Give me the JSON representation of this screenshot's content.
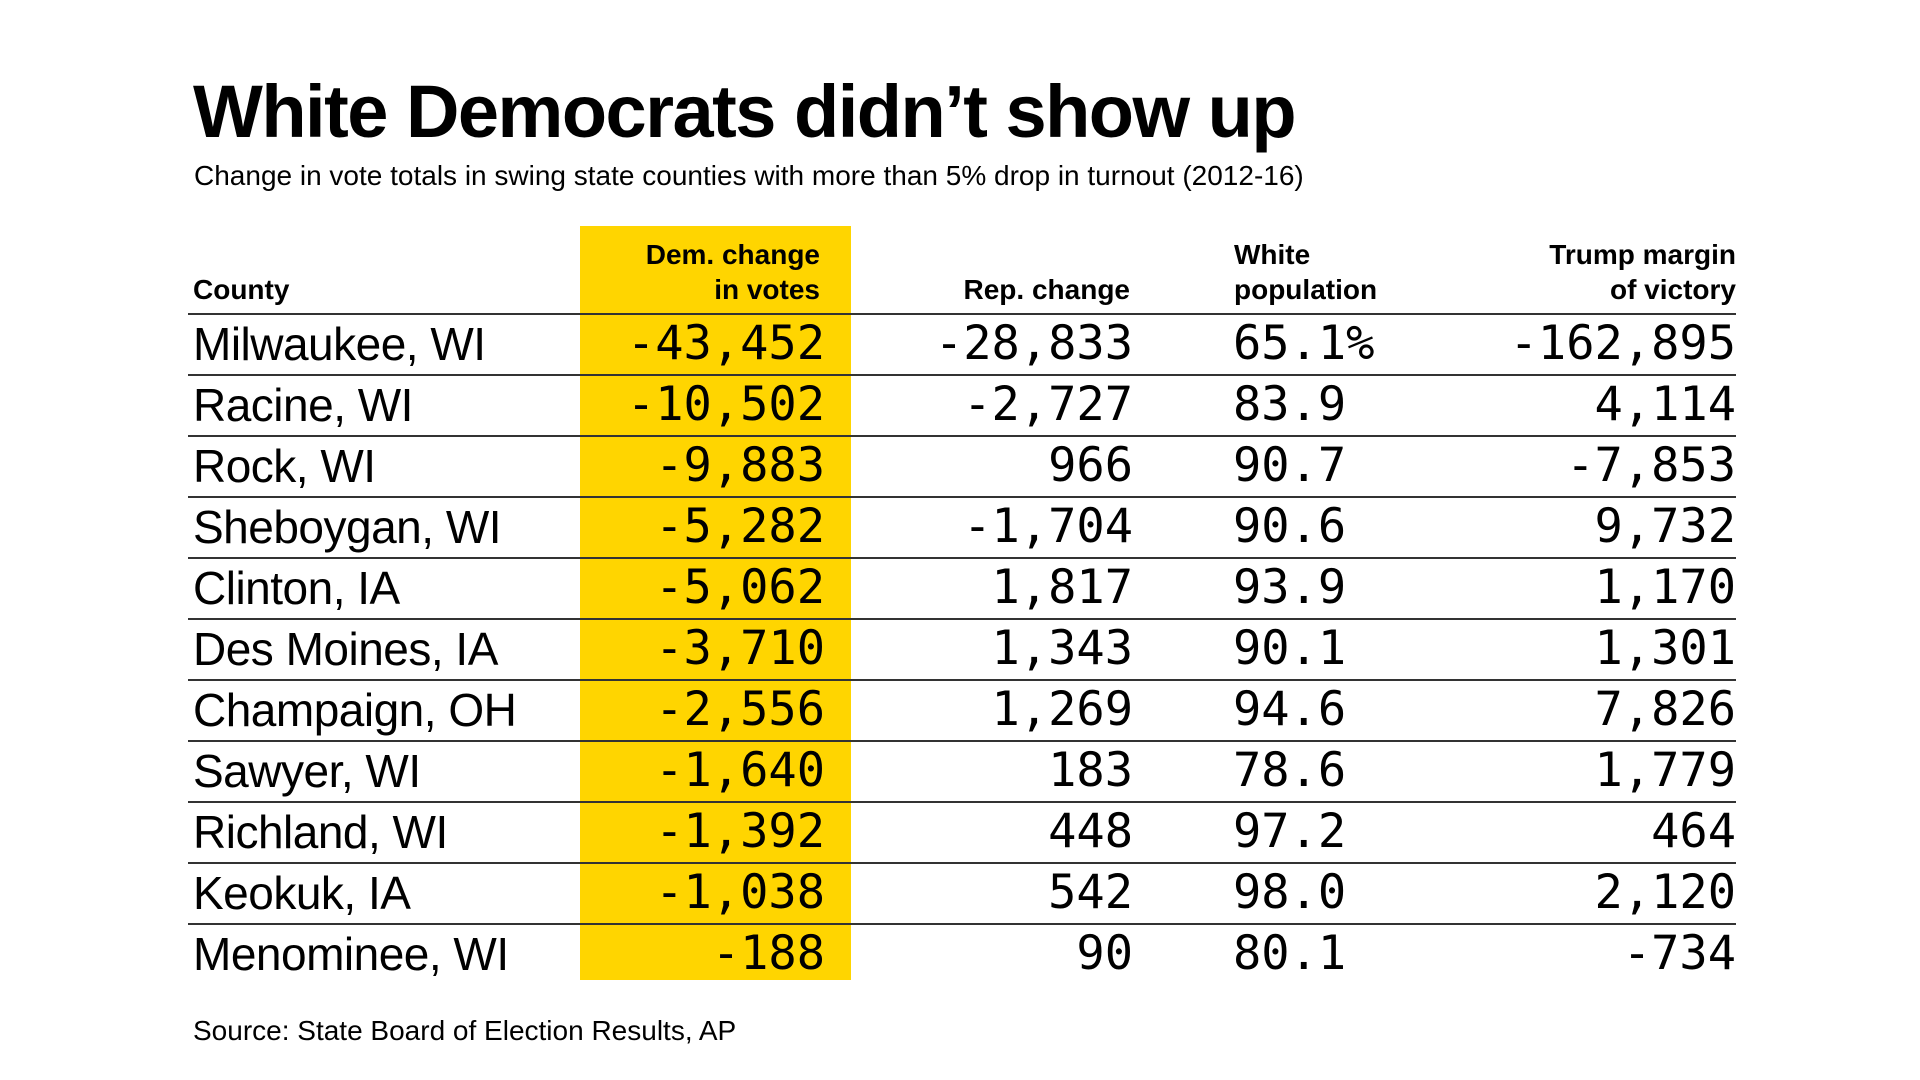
{
  "title": "White Democrats didn’t show up",
  "subtitle": "Change in vote totals in swing state counties with more than 5% drop in turnout (2012-16)",
  "source": "Source: State Board of Election Results, AP",
  "colors": {
    "highlight": "#FFD500",
    "rule": "#333333",
    "text": "#000000",
    "background": "#FFFFFF"
  },
  "chart_data": {
    "type": "table",
    "highlighted_column": "dem_change",
    "columns": [
      {
        "key": "county",
        "label_lines": [
          "County"
        ]
      },
      {
        "key": "dem_change",
        "label_lines": [
          "Dem. change",
          "in votes"
        ]
      },
      {
        "key": "rep_change",
        "label_lines": [
          "Rep. change"
        ]
      },
      {
        "key": "white_pop",
        "label_lines": [
          "White",
          "population"
        ]
      },
      {
        "key": "trump_margin",
        "label_lines": [
          "Trump margin",
          "of victory"
        ]
      }
    ],
    "rows": [
      {
        "county": "Milwaukee, WI",
        "dem_change": "-43,452",
        "rep_change": "-28,833",
        "white_pop": "65.1%",
        "trump_margin": "-162,895"
      },
      {
        "county": "Racine, WI",
        "dem_change": "-10,502",
        "rep_change": "-2,727",
        "white_pop": "83.9",
        "trump_margin": "4,114"
      },
      {
        "county": "Rock, WI",
        "dem_change": "-9,883",
        "rep_change": "966",
        "white_pop": "90.7",
        "trump_margin": "-7,853"
      },
      {
        "county": "Sheboygan, WI",
        "dem_change": "-5,282",
        "rep_change": "-1,704",
        "white_pop": "90.6",
        "trump_margin": "9,732"
      },
      {
        "county": "Clinton, IA",
        "dem_change": "-5,062",
        "rep_change": "1,817",
        "white_pop": "93.9",
        "trump_margin": "1,170"
      },
      {
        "county": "Des Moines, IA",
        "dem_change": "-3,710",
        "rep_change": "1,343",
        "white_pop": "90.1",
        "trump_margin": "1,301"
      },
      {
        "county": "Champaign, OH",
        "dem_change": "-2,556",
        "rep_change": "1,269",
        "white_pop": "94.6",
        "trump_margin": "7,826"
      },
      {
        "county": "Sawyer, WI",
        "dem_change": "-1,640",
        "rep_change": "183",
        "white_pop": "78.6",
        "trump_margin": "1,779"
      },
      {
        "county": "Richland, WI",
        "dem_change": "-1,392",
        "rep_change": "448",
        "white_pop": "97.2",
        "trump_margin": "464"
      },
      {
        "county": "Keokuk, IA",
        "dem_change": "-1,038",
        "rep_change": "542",
        "white_pop": "98.0",
        "trump_margin": "2,120"
      },
      {
        "county": "Menominee, WI",
        "dem_change": "-188",
        "rep_change": "90",
        "white_pop": "80.1",
        "trump_margin": "-734"
      }
    ]
  }
}
